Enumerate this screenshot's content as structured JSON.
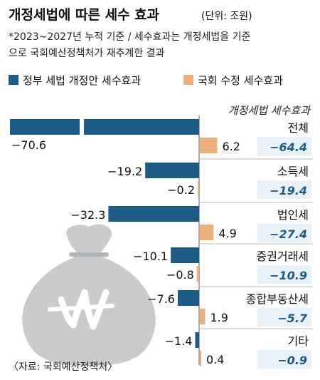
{
  "header": {
    "title": "개정세법에 따른 세수 효과",
    "unit": "(단위: 조원)",
    "note_line1": "*2023~2027년 누적 기준 / 세수효과는 개정세법을 기준",
    "note_line2": "으로 국회예산정책처가 재추계한 결과"
  },
  "source": "〈자료: 국회예산정책처〉",
  "colors": {
    "government": "#1d5d85",
    "assembly": "#eeb07a",
    "total_text": "#1d5d85",
    "total_bg": "#e8f2f8"
  },
  "chart_data": {
    "type": "bar",
    "orientation": "horizontal",
    "categories": [
      "전체",
      "소득세",
      "법인세",
      "증권거래세",
      "종합부동산세",
      "기타"
    ],
    "series": [
      {
        "name": "정부 세법 개정안 세수효과",
        "values": [
          -70.6,
          -19.2,
          -32.3,
          -10.1,
          -7.6,
          -1.4
        ]
      },
      {
        "name": "국회 수정 세수효과",
        "values": [
          6.2,
          -0.2,
          4.9,
          -0.8,
          1.9,
          0.4
        ]
      }
    ],
    "value_labels_government": [
      "−70.6",
      "−19.2",
      "−32.3",
      "−10.1",
      "−7.6",
      "−1.4"
    ],
    "value_labels_assembly": [
      "6.2",
      "−0.2",
      "4.9",
      "−0.8",
      "1.9",
      "0.4"
    ],
    "total_header": "개정세법 세수효과",
    "totals": [
      -64.4,
      -19.4,
      -27.4,
      -10.9,
      -5.7,
      -0.9
    ],
    "total_labels": [
      "−64.4",
      "−19.4",
      "−27.4",
      "−10.9",
      "−5.7",
      "−0.9"
    ],
    "axis_break_on_first_bar": true,
    "legend_position": "top"
  }
}
